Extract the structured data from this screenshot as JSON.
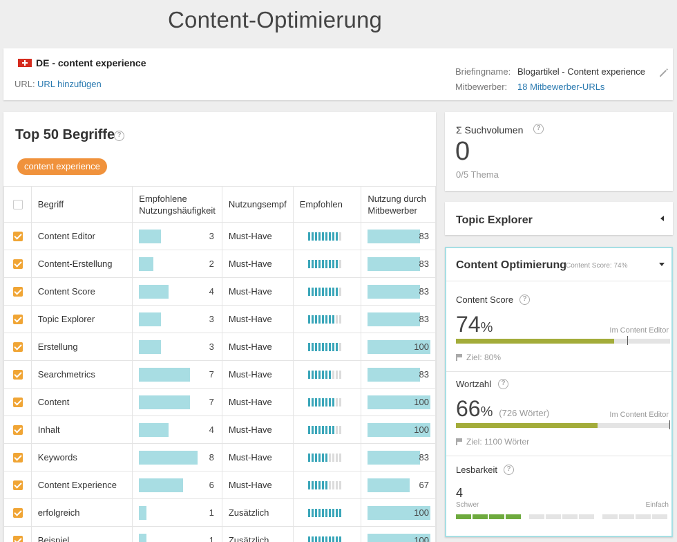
{
  "page": {
    "title": "Content-Optimierung"
  },
  "header": {
    "project": "DE - content experience",
    "url_label": "URL:",
    "url_link": "URL hinzufügen",
    "briefing_label": "Briefingname:",
    "briefing_value": "Blogartikel - Content experience",
    "competitors_label": "Mitbewerber:",
    "competitors_link": "18 Mitbewerber-URLs"
  },
  "terms": {
    "title": "Top 50 Begriffe",
    "tag": "content experience",
    "columns": [
      "Begriff",
      "Empfohlene Nutzungshäufigkeit",
      "Nutzungsempf",
      "Empfohlen",
      "Nutzung durch Mitbewerber"
    ],
    "rows": [
      {
        "term": "Content Editor",
        "freq": 3,
        "usage": "Must-Have",
        "rec": 9,
        "comp": 83
      },
      {
        "term": "Content-Erstellung",
        "freq": 2,
        "usage": "Must-Have",
        "rec": 9,
        "comp": 83
      },
      {
        "term": "Content Score",
        "freq": 4,
        "usage": "Must-Have",
        "rec": 9,
        "comp": 83
      },
      {
        "term": "Topic Explorer",
        "freq": 3,
        "usage": "Must-Have",
        "rec": 8,
        "comp": 83
      },
      {
        "term": "Erstellung",
        "freq": 3,
        "usage": "Must-Have",
        "rec": 9,
        "comp": 100
      },
      {
        "term": "Searchmetrics",
        "freq": 7,
        "usage": "Must-Have",
        "rec": 7,
        "comp": 83
      },
      {
        "term": "Content",
        "freq": 7,
        "usage": "Must-Have",
        "rec": 8,
        "comp": 100
      },
      {
        "term": "Inhalt",
        "freq": 4,
        "usage": "Must-Have",
        "rec": 8,
        "comp": 100
      },
      {
        "term": "Keywords",
        "freq": 8,
        "usage": "Must-Have",
        "rec": 6,
        "comp": 83
      },
      {
        "term": "Content Experience",
        "freq": 6,
        "usage": "Must-Have",
        "rec": 6,
        "comp": 67
      },
      {
        "term": "erfolgreich",
        "freq": 1,
        "usage": "Zusätzlich",
        "rec": 10,
        "comp": 100
      },
      {
        "term": "Beispiel",
        "freq": 1,
        "usage": "Zusätzlich",
        "rec": 10,
        "comp": 100
      }
    ]
  },
  "volume": {
    "title": "Σ Suchvolumen",
    "value": "0",
    "sub": "0/5 Thema"
  },
  "topic_explorer": {
    "title": "Topic Explorer"
  },
  "optimization": {
    "title": "Content Optimierung",
    "score_sub": "Content Score: 74%",
    "content_score": {
      "label": "Content Score",
      "value": "74",
      "unit": "%",
      "editor": "Im Content Editor",
      "fill": 0.74,
      "goal": "Ziel: 80%"
    },
    "word_count": {
      "label": "Wortzahl",
      "value": "66",
      "unit": "%",
      "extra": "(726 Wörter)",
      "editor": "Im Content Editor",
      "fill": 0.66,
      "goal": "Ziel: 1100 Wörter"
    },
    "readability": {
      "label": "Lesbarkeit",
      "value": "4",
      "hard": "Schwer",
      "easy": "Einfach",
      "active_segments": 4
    }
  },
  "colors": {
    "accent": "#f0923c",
    "teal": "#3aa6b9",
    "bar": "#a8dde3",
    "progress": "#a3ac3a",
    "checkbox": "#f0a535"
  }
}
